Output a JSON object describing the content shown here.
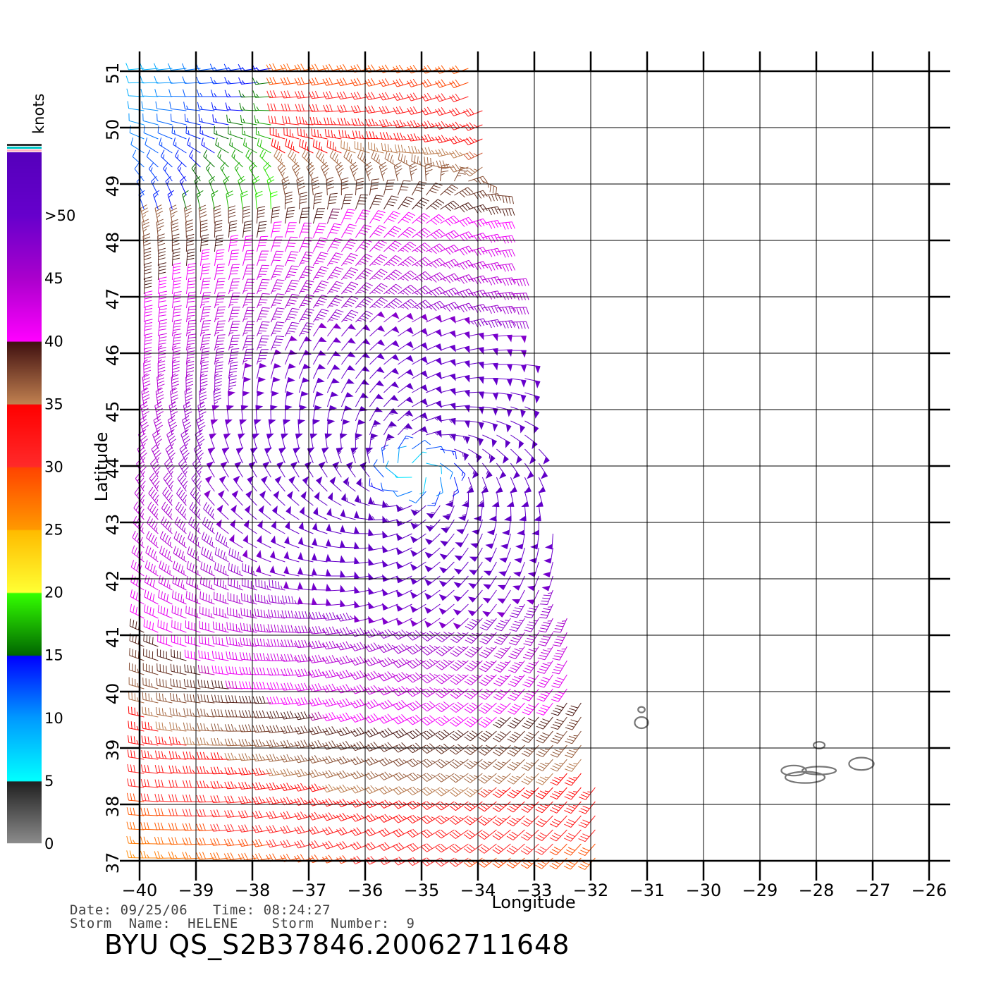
{
  "map": {
    "x_axis": {
      "label": "Longitude",
      "range": [
        -40,
        -26
      ],
      "ticks": [
        -40,
        -39,
        -38,
        -37,
        -36,
        -35,
        -34,
        -33,
        -32,
        -31,
        -30,
        -29,
        -28,
        -27,
        -26
      ],
      "tick_labels": [
        "−40",
        "−39",
        "−38",
        "−37",
        "−36",
        "−35",
        "−34",
        "−33",
        "−32",
        "−31",
        "−30",
        "−29",
        "−28",
        "−27",
        "−26"
      ]
    },
    "y_axis": {
      "label": "Latitude",
      "range": [
        37,
        51
      ],
      "ticks": [
        37,
        38,
        39,
        40,
        41,
        42,
        43,
        44,
        45,
        46,
        47,
        48,
        49,
        50,
        51
      ],
      "tick_labels": [
        "37",
        "38",
        "39",
        "40",
        "41",
        "42",
        "43",
        "44",
        "45",
        "46",
        "47",
        "48",
        "49",
        "50",
        "51"
      ]
    },
    "grid": true,
    "storm_center": {
      "lon": -35.1,
      "lat": 43.9
    },
    "swath": {
      "lat_bottom": 37.0,
      "lat_top": 51.0,
      "west_lon": -40,
      "east_lon_at_top": -34,
      "east_lon_at_bottom": -31.7
    },
    "islands": [
      {
        "lon": -31.1,
        "lat": 39.45,
        "rx": 0.12,
        "ry": 0.1
      },
      {
        "lon": -31.1,
        "lat": 39.68,
        "rx": 0.06,
        "ry": 0.05
      },
      {
        "lon": -28.2,
        "lat": 38.48,
        "rx": 0.35,
        "ry": 0.1
      },
      {
        "lon": -28.4,
        "lat": 38.6,
        "rx": 0.22,
        "ry": 0.09
      },
      {
        "lon": -27.95,
        "lat": 38.6,
        "rx": 0.3,
        "ry": 0.07
      },
      {
        "lon": -27.95,
        "lat": 39.05,
        "rx": 0.1,
        "ry": 0.06
      },
      {
        "lon": -27.2,
        "lat": 38.72,
        "rx": 0.22,
        "ry": 0.11
      }
    ],
    "colors": {
      "grid": "#000000",
      "island": "#777777"
    }
  },
  "colorbar": {
    "unit": "knots",
    "range": [
      0,
      55
    ],
    "tick_labels": [
      "0",
      "5",
      "10",
      "15",
      "20",
      "25",
      "30",
      "35",
      "40",
      "45",
      ">50"
    ],
    "tick_values": [
      0,
      5,
      10,
      15,
      20,
      25,
      30,
      35,
      40,
      45,
      50
    ],
    "stops": [
      {
        "v": 0,
        "color": "#8c8c8c"
      },
      {
        "v": 4.9,
        "color": "#202020"
      },
      {
        "v": 5,
        "color": "#00ffff"
      },
      {
        "v": 10,
        "color": "#0099ff"
      },
      {
        "v": 14.9,
        "color": "#0000ff"
      },
      {
        "v": 15,
        "color": "#006600"
      },
      {
        "v": 19.9,
        "color": "#33ff00"
      },
      {
        "v": 20,
        "color": "#ffff33"
      },
      {
        "v": 24.9,
        "color": "#ffbb00"
      },
      {
        "v": 25,
        "color": "#ff9900"
      },
      {
        "v": 29.9,
        "color": "#ff4400"
      },
      {
        "v": 30,
        "color": "#ff2a2a"
      },
      {
        "v": 34.9,
        "color": "#ff0000"
      },
      {
        "v": 35,
        "color": "#c08050"
      },
      {
        "v": 39.9,
        "color": "#401010"
      },
      {
        "v": 40,
        "color": "#ff00ff"
      },
      {
        "v": 45,
        "color": "#aa00cc"
      },
      {
        "v": 50,
        "color": "#6600cc"
      },
      {
        "v": 55,
        "color": "#5500bb"
      }
    ],
    "top_stripes": [
      "#ffb0c0",
      "#00c8c8",
      "#333333"
    ]
  },
  "info": {
    "date_line": "Date: 09/25/06   Time: 08:24:27",
    "storm_line": "Storm  Name:  HELENE    Storm  Number:  9",
    "title": "BYU  QS_S2B37846.20062711648"
  }
}
